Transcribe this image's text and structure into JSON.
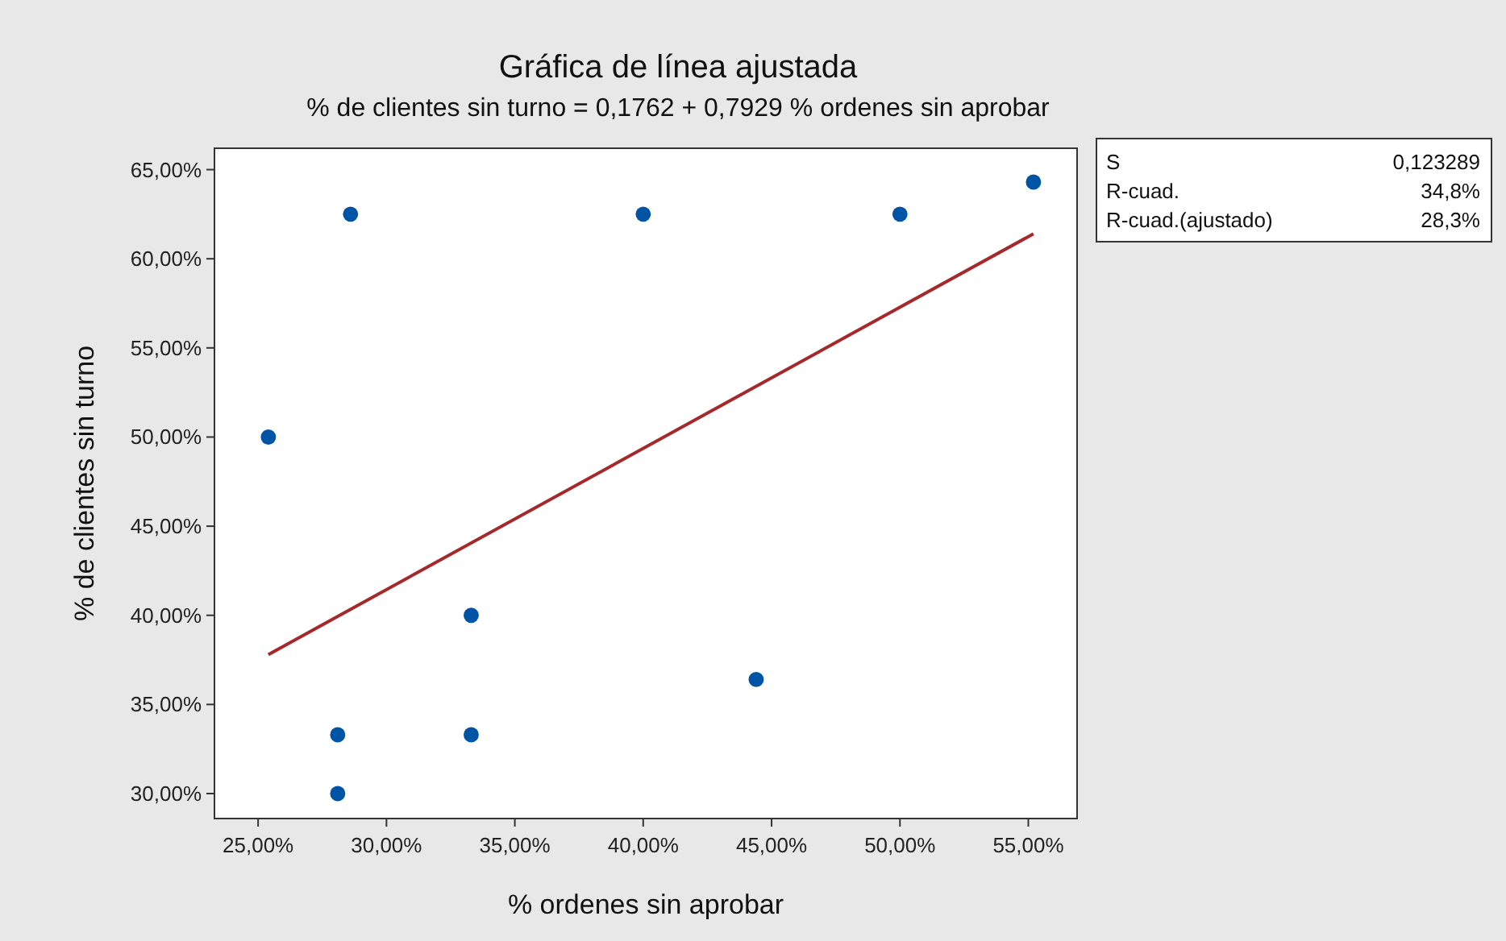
{
  "chart_data": {
    "type": "scatter",
    "title": "Gráfica de línea ajustada",
    "subtitle": "% de clientes sin turno = 0,1762 + 0,7929 % ordenes sin aprobar",
    "xlabel": "% ordenes sin aprobar",
    "ylabel": "% de clientes sin turno",
    "annotations": [
      "S",
      "0,123289",
      "R-cuad.",
      "34,8%",
      "R-cuad.(ajustado)",
      "28,3%"
    ],
    "series": [
      {
        "color": "#0054a6",
        "marker": "circle",
        "x": [
          25.4,
          28.6,
          40.0,
          50.0,
          55.2,
          33.3,
          44.4,
          28.1,
          33.3,
          28.1
        ],
        "values": [
          50.0,
          62.5,
          62.5,
          62.5,
          64.3,
          40.0,
          36.4,
          33.3,
          33.3,
          30.0
        ]
      },
      {
        "type": "line",
        "color": "#a6282a",
        "x": [
          25.4,
          55.2
        ],
        "values": [
          37.8,
          61.4
        ]
      }
    ],
    "grid": false,
    "xlim": [
      23.3,
      56.9
    ],
    "ylim": [
      28.6,
      66.2
    ],
    "xticks": [
      {
        "value": 25,
        "label": "25,00%"
      },
      {
        "value": 30,
        "label": "30,00%"
      },
      {
        "value": 35,
        "label": "35,00%"
      },
      {
        "value": 40,
        "label": "40,00%"
      },
      {
        "value": 45,
        "label": "45,00%"
      },
      {
        "value": 50,
        "label": "50,00%"
      },
      {
        "value": 55,
        "label": "55,00%"
      }
    ],
    "yticks": [
      {
        "value": 30,
        "label": "30,00%"
      },
      {
        "value": 35,
        "label": "35,00%"
      },
      {
        "value": 40,
        "label": "40,00%"
      },
      {
        "value": 45,
        "label": "45,00%"
      },
      {
        "value": 50,
        "label": "50,00%"
      },
      {
        "value": 55,
        "label": "55,00%"
      },
      {
        "value": 60,
        "label": "60,00%"
      },
      {
        "value": 65,
        "label": "65,00%"
      }
    ]
  }
}
